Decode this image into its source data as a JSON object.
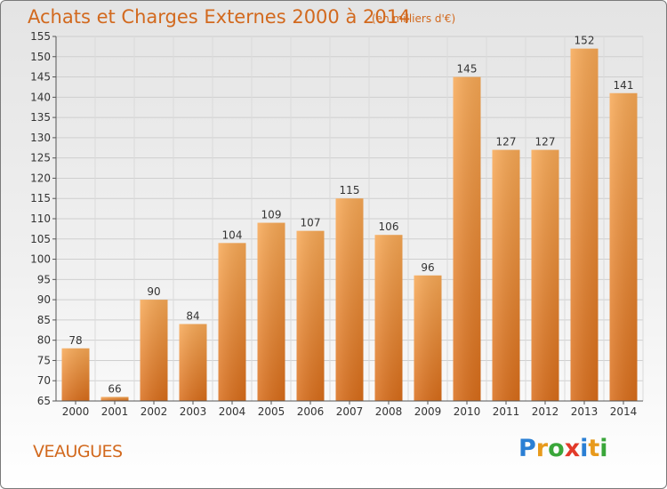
{
  "chart_data": {
    "type": "bar",
    "title": "Achats et Charges Externes 2000 à 2014",
    "subtitle": "(en milliers d'€)",
    "categories": [
      "2000",
      "2001",
      "2002",
      "2003",
      "2004",
      "2005",
      "2006",
      "2007",
      "2008",
      "2009",
      "2010",
      "2011",
      "2012",
      "2013",
      "2014"
    ],
    "values": [
      78,
      66,
      90,
      84,
      104,
      109,
      107,
      115,
      106,
      96,
      145,
      127,
      127,
      152,
      141
    ],
    "ylim": [
      65,
      155
    ],
    "yticks": [
      65,
      70,
      75,
      80,
      85,
      90,
      95,
      100,
      105,
      110,
      115,
      120,
      125,
      130,
      135,
      140,
      145,
      150,
      155
    ],
    "grid": true,
    "bar_color": "#e8832f",
    "bar_color_light": "#f7a855"
  },
  "commune": "VEAUGUES",
  "logo": {
    "text": "Proxiti",
    "letters": [
      {
        "ch": "P",
        "color": "#2a7fd4"
      },
      {
        "ch": "r",
        "color": "#e89a1c"
      },
      {
        "ch": "o",
        "color": "#3aa63a"
      },
      {
        "ch": "x",
        "color": "#e23a2a"
      },
      {
        "ch": "i",
        "color": "#2a7fd4"
      },
      {
        "ch": "t",
        "color": "#e89a1c"
      },
      {
        "ch": "i",
        "color": "#3aa63a"
      }
    ]
  }
}
